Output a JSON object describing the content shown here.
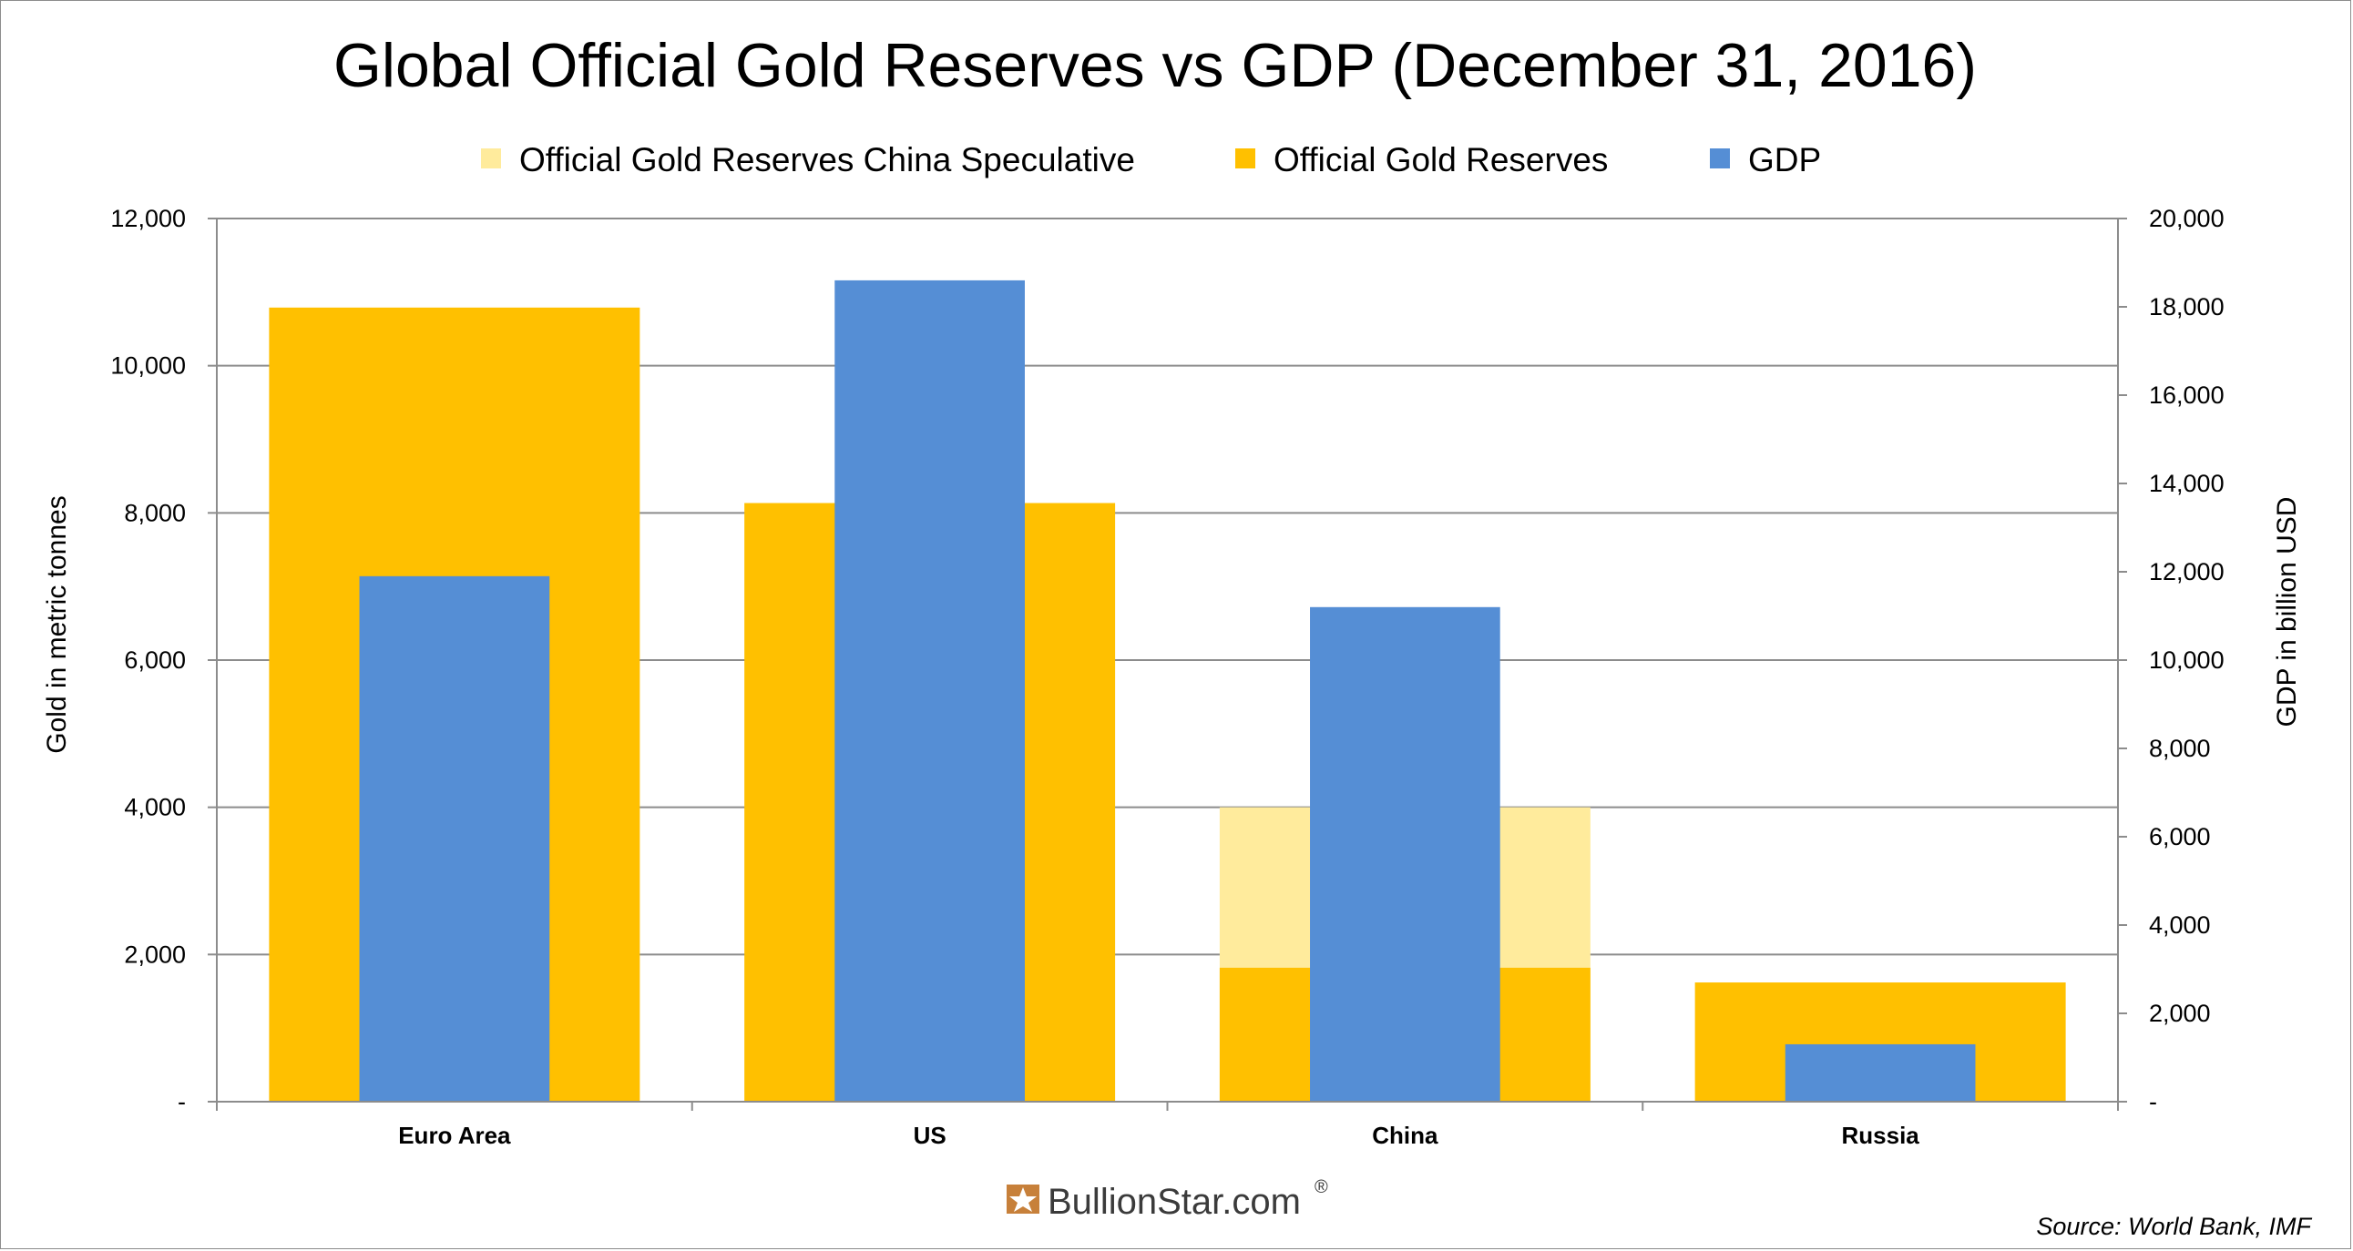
{
  "chart_data": {
    "type": "bar",
    "title": "Global Official Gold Reserves vs GDP (December 31, 2016)",
    "categories": [
      "Euro Area",
      "US",
      "China",
      "Russia"
    ],
    "series": [
      {
        "name": "Official Gold Reserves China Speculative",
        "axis": "left",
        "values": [
          null,
          null,
          4000,
          null
        ],
        "color": "#FFEB9C"
      },
      {
        "name": "Official Gold Reserves",
        "axis": "left",
        "values": [
          10790,
          8134,
          1820,
          1620
        ],
        "color": "#FFC000"
      },
      {
        "name": "GDP",
        "axis": "right",
        "values": [
          11900,
          18600,
          11200,
          1300
        ],
        "color": "#558ED5"
      }
    ],
    "ylabel": "Gold in metric tonnes",
    "y2label": "GDP in billion USD",
    "ylim": [
      0,
      12000
    ],
    "y2lim": [
      0,
      20000
    ],
    "yticks": [
      "-",
      "2,000",
      "4,000",
      "6,000",
      "8,000",
      "10,000",
      "12,000"
    ],
    "y2ticks": [
      "-",
      "2,000",
      "4,000",
      "6,000",
      "8,000",
      "10,000",
      "12,000",
      "14,000",
      "16,000",
      "18,000",
      "20,000"
    ],
    "grid": true,
    "legend": "top",
    "source": "Source: World Bank, IMF",
    "logo": {
      "text": "BullionStar.com",
      "reg": "®"
    }
  }
}
